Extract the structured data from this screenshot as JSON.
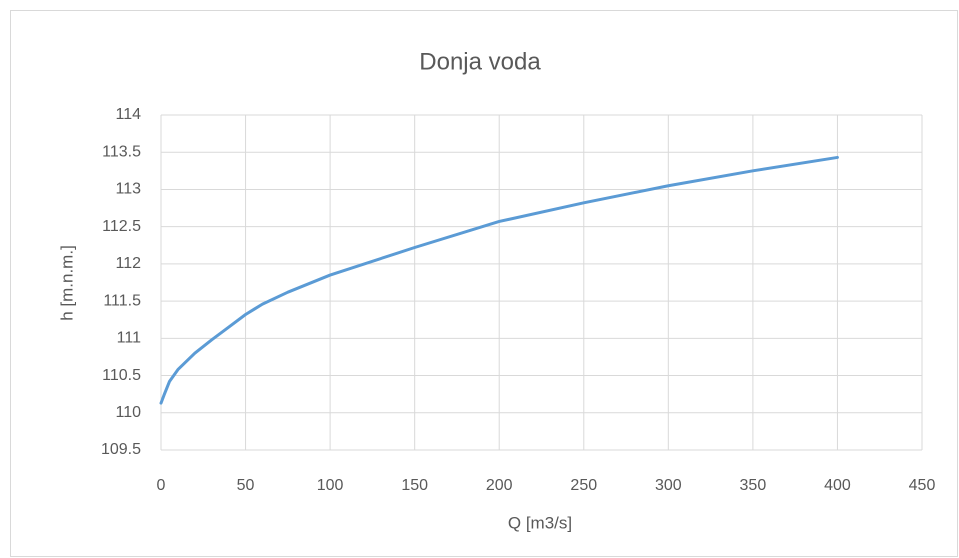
{
  "chart_data": {
    "type": "line",
    "title": "Donja voda",
    "xlabel": "Q [m3/s]",
    "ylabel": "h [m.n.m.]",
    "x": [
      0,
      2,
      5,
      10,
      20,
      30,
      40,
      50,
      60,
      75,
      100,
      150,
      200,
      250,
      300,
      350,
      400
    ],
    "values": [
      110.13,
      110.25,
      110.42,
      110.58,
      110.8,
      110.98,
      111.15,
      111.32,
      111.46,
      111.62,
      111.85,
      112.22,
      112.57,
      112.82,
      113.05,
      113.25,
      113.43
    ],
    "color": "#5b9bd5",
    "xlim": [
      0,
      450
    ],
    "xticks": [
      0,
      50,
      100,
      150,
      200,
      250,
      300,
      350,
      400,
      450
    ],
    "ylim": [
      109.5,
      114
    ],
    "yticks": [
      109.5,
      110,
      110.5,
      111,
      111.5,
      112,
      112.5,
      113,
      113.5,
      114
    ],
    "grid": true
  }
}
